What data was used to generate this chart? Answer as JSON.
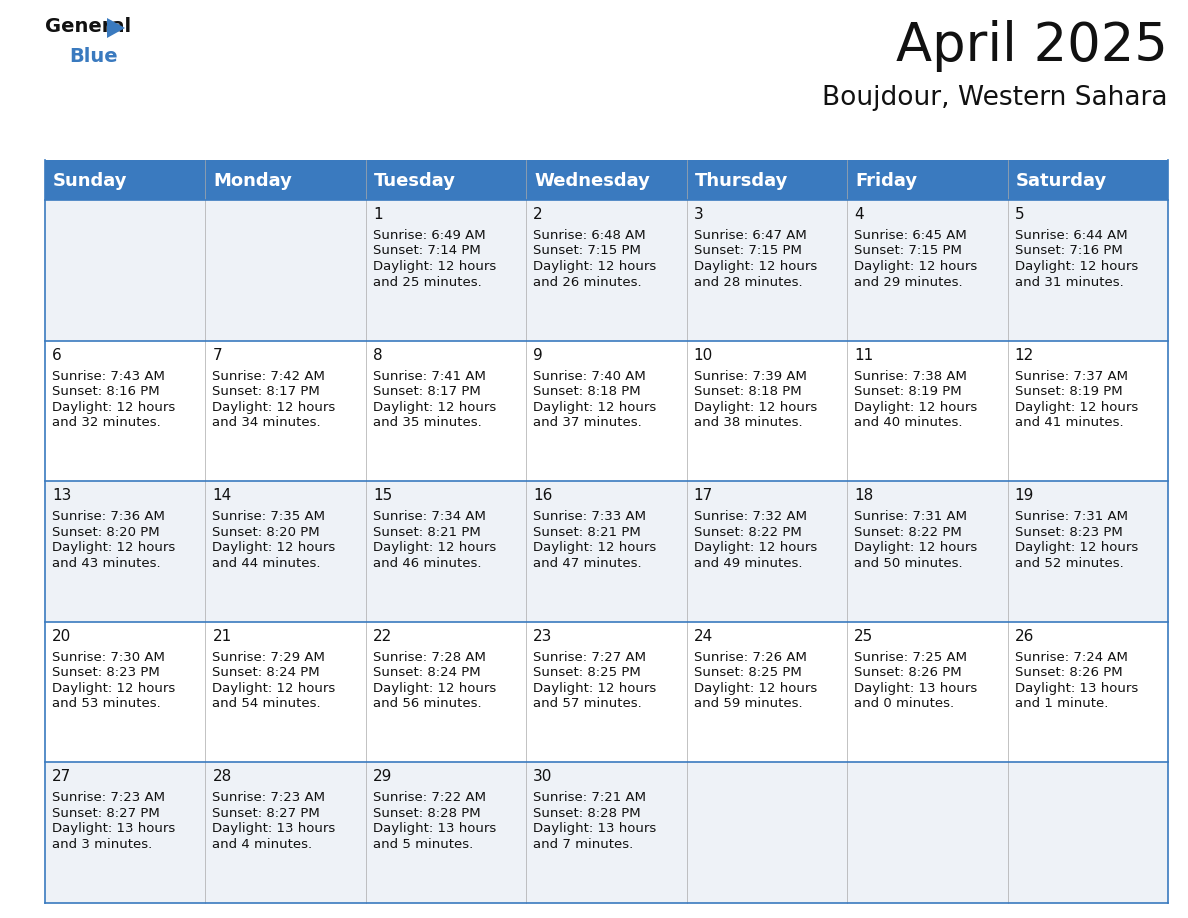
{
  "title": "April 2025",
  "subtitle": "Boujdour, Western Sahara",
  "header_bg_color": "#3a7abf",
  "header_text_color": "#ffffff",
  "row0_bg": "#eef2f7",
  "row1_bg": "#ffffff",
  "border_color": "#3a7abf",
  "separator_color": "#3a7abf",
  "day_headers": [
    "Sunday",
    "Monday",
    "Tuesday",
    "Wednesday",
    "Thursday",
    "Friday",
    "Saturday"
  ],
  "title_fontsize": 38,
  "subtitle_fontsize": 19,
  "header_fontsize": 13,
  "date_fontsize": 11,
  "cell_fontsize": 9.5,
  "days": [
    {
      "date": 1,
      "col": 2,
      "row": 0,
      "sunrise": "6:49 AM",
      "sunset": "7:14 PM",
      "dl1": "Daylight: 12 hours",
      "dl2": "and 25 minutes."
    },
    {
      "date": 2,
      "col": 3,
      "row": 0,
      "sunrise": "6:48 AM",
      "sunset": "7:15 PM",
      "dl1": "Daylight: 12 hours",
      "dl2": "and 26 minutes."
    },
    {
      "date": 3,
      "col": 4,
      "row": 0,
      "sunrise": "6:47 AM",
      "sunset": "7:15 PM",
      "dl1": "Daylight: 12 hours",
      "dl2": "and 28 minutes."
    },
    {
      "date": 4,
      "col": 5,
      "row": 0,
      "sunrise": "6:45 AM",
      "sunset": "7:15 PM",
      "dl1": "Daylight: 12 hours",
      "dl2": "and 29 minutes."
    },
    {
      "date": 5,
      "col": 6,
      "row": 0,
      "sunrise": "6:44 AM",
      "sunset": "7:16 PM",
      "dl1": "Daylight: 12 hours",
      "dl2": "and 31 minutes."
    },
    {
      "date": 6,
      "col": 0,
      "row": 1,
      "sunrise": "7:43 AM",
      "sunset": "8:16 PM",
      "dl1": "Daylight: 12 hours",
      "dl2": "and 32 minutes."
    },
    {
      "date": 7,
      "col": 1,
      "row": 1,
      "sunrise": "7:42 AM",
      "sunset": "8:17 PM",
      "dl1": "Daylight: 12 hours",
      "dl2": "and 34 minutes."
    },
    {
      "date": 8,
      "col": 2,
      "row": 1,
      "sunrise": "7:41 AM",
      "sunset": "8:17 PM",
      "dl1": "Daylight: 12 hours",
      "dl2": "and 35 minutes."
    },
    {
      "date": 9,
      "col": 3,
      "row": 1,
      "sunrise": "7:40 AM",
      "sunset": "8:18 PM",
      "dl1": "Daylight: 12 hours",
      "dl2": "and 37 minutes."
    },
    {
      "date": 10,
      "col": 4,
      "row": 1,
      "sunrise": "7:39 AM",
      "sunset": "8:18 PM",
      "dl1": "Daylight: 12 hours",
      "dl2": "and 38 minutes."
    },
    {
      "date": 11,
      "col": 5,
      "row": 1,
      "sunrise": "7:38 AM",
      "sunset": "8:19 PM",
      "dl1": "Daylight: 12 hours",
      "dl2": "and 40 minutes."
    },
    {
      "date": 12,
      "col": 6,
      "row": 1,
      "sunrise": "7:37 AM",
      "sunset": "8:19 PM",
      "dl1": "Daylight: 12 hours",
      "dl2": "and 41 minutes."
    },
    {
      "date": 13,
      "col": 0,
      "row": 2,
      "sunrise": "7:36 AM",
      "sunset": "8:20 PM",
      "dl1": "Daylight: 12 hours",
      "dl2": "and 43 minutes."
    },
    {
      "date": 14,
      "col": 1,
      "row": 2,
      "sunrise": "7:35 AM",
      "sunset": "8:20 PM",
      "dl1": "Daylight: 12 hours",
      "dl2": "and 44 minutes."
    },
    {
      "date": 15,
      "col": 2,
      "row": 2,
      "sunrise": "7:34 AM",
      "sunset": "8:21 PM",
      "dl1": "Daylight: 12 hours",
      "dl2": "and 46 minutes."
    },
    {
      "date": 16,
      "col": 3,
      "row": 2,
      "sunrise": "7:33 AM",
      "sunset": "8:21 PM",
      "dl1": "Daylight: 12 hours",
      "dl2": "and 47 minutes."
    },
    {
      "date": 17,
      "col": 4,
      "row": 2,
      "sunrise": "7:32 AM",
      "sunset": "8:22 PM",
      "dl1": "Daylight: 12 hours",
      "dl2": "and 49 minutes."
    },
    {
      "date": 18,
      "col": 5,
      "row": 2,
      "sunrise": "7:31 AM",
      "sunset": "8:22 PM",
      "dl1": "Daylight: 12 hours",
      "dl2": "and 50 minutes."
    },
    {
      "date": 19,
      "col": 6,
      "row": 2,
      "sunrise": "7:31 AM",
      "sunset": "8:23 PM",
      "dl1": "Daylight: 12 hours",
      "dl2": "and 52 minutes."
    },
    {
      "date": 20,
      "col": 0,
      "row": 3,
      "sunrise": "7:30 AM",
      "sunset": "8:23 PM",
      "dl1": "Daylight: 12 hours",
      "dl2": "and 53 minutes."
    },
    {
      "date": 21,
      "col": 1,
      "row": 3,
      "sunrise": "7:29 AM",
      "sunset": "8:24 PM",
      "dl1": "Daylight: 12 hours",
      "dl2": "and 54 minutes."
    },
    {
      "date": 22,
      "col": 2,
      "row": 3,
      "sunrise": "7:28 AM",
      "sunset": "8:24 PM",
      "dl1": "Daylight: 12 hours",
      "dl2": "and 56 minutes."
    },
    {
      "date": 23,
      "col": 3,
      "row": 3,
      "sunrise": "7:27 AM",
      "sunset": "8:25 PM",
      "dl1": "Daylight: 12 hours",
      "dl2": "and 57 minutes."
    },
    {
      "date": 24,
      "col": 4,
      "row": 3,
      "sunrise": "7:26 AM",
      "sunset": "8:25 PM",
      "dl1": "Daylight: 12 hours",
      "dl2": "and 59 minutes."
    },
    {
      "date": 25,
      "col": 5,
      "row": 3,
      "sunrise": "7:25 AM",
      "sunset": "8:26 PM",
      "dl1": "Daylight: 13 hours",
      "dl2": "and 0 minutes."
    },
    {
      "date": 26,
      "col": 6,
      "row": 3,
      "sunrise": "7:24 AM",
      "sunset": "8:26 PM",
      "dl1": "Daylight: 13 hours",
      "dl2": "and 1 minute."
    },
    {
      "date": 27,
      "col": 0,
      "row": 4,
      "sunrise": "7:23 AM",
      "sunset": "8:27 PM",
      "dl1": "Daylight: 13 hours",
      "dl2": "and 3 minutes."
    },
    {
      "date": 28,
      "col": 1,
      "row": 4,
      "sunrise": "7:23 AM",
      "sunset": "8:27 PM",
      "dl1": "Daylight: 13 hours",
      "dl2": "and 4 minutes."
    },
    {
      "date": 29,
      "col": 2,
      "row": 4,
      "sunrise": "7:22 AM",
      "sunset": "8:28 PM",
      "dl1": "Daylight: 13 hours",
      "dl2": "and 5 minutes."
    },
    {
      "date": 30,
      "col": 3,
      "row": 4,
      "sunrise": "7:21 AM",
      "sunset": "8:28 PM",
      "dl1": "Daylight: 13 hours",
      "dl2": "and 7 minutes."
    }
  ]
}
